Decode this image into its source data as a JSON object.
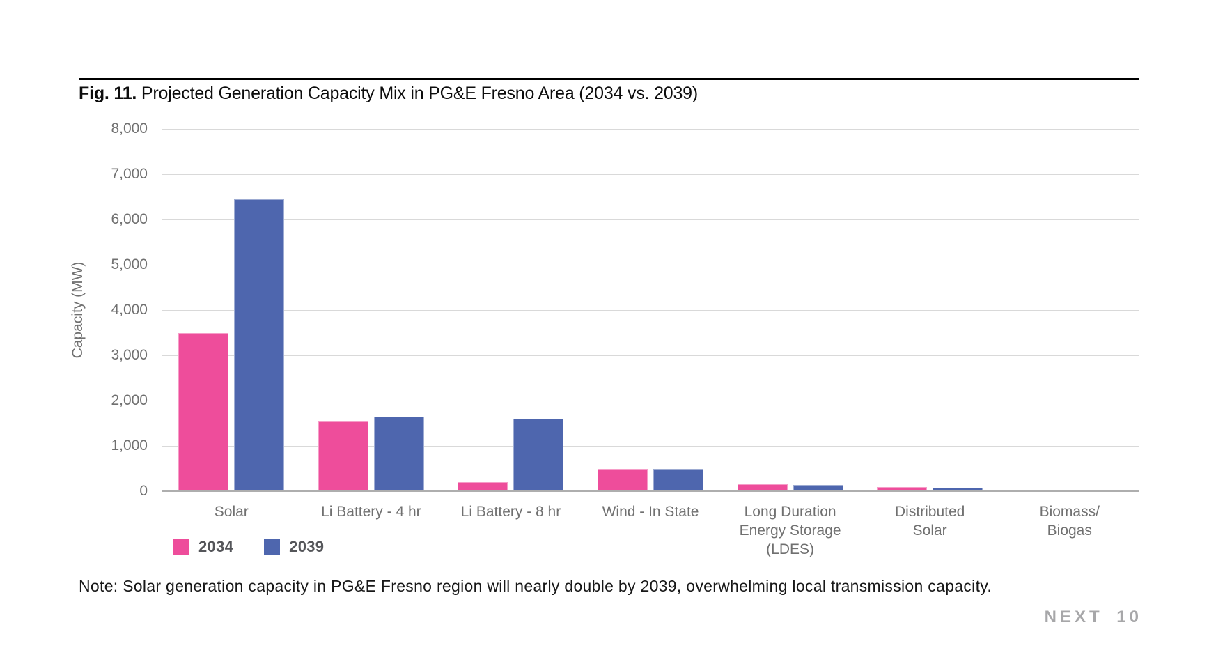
{
  "figure": {
    "label": "Fig. 11.",
    "title": "Projected Generation Capacity Mix in PG&E Fresno Area (2034 vs. 2039)"
  },
  "chart_data": {
    "type": "bar",
    "title": "Projected Generation Capacity Mix in PG&E Fresno Area (2034 vs. 2039)",
    "xlabel": "",
    "ylabel": "Capacity (MW)",
    "ylim": [
      0,
      8000
    ],
    "ytick_step": 1000,
    "grid": true,
    "legend_position": "bottom-left",
    "categories": [
      "Solar",
      "Li Battery - 4 hr",
      "Li Battery - 8 hr",
      "Wind - In State",
      "Long Duration\nEnergy Storage (LDES)",
      "Distributed\nSolar",
      "Biomass/\nBiogas"
    ],
    "series": [
      {
        "name": "2034",
        "color": "#EE4D9B",
        "values": [
          3500,
          1550,
          200,
          500,
          150,
          90,
          35
        ]
      },
      {
        "name": "2039",
        "color": "#4E66AE",
        "values": [
          6440,
          1650,
          1600,
          490,
          140,
          70,
          25
        ]
      }
    ]
  },
  "note": "Note: Solar generation capacity in PG&E Fresno region will nearly double by 2039, overwhelming local transmission capacity.",
  "branding": "NEXT 10",
  "colors": {
    "series_2034": "#EE4D9B",
    "series_2039": "#4E66AE",
    "gridline": "#D9D9D9",
    "axis_line": "#AEAEAE",
    "tick_text": "#707070",
    "title_text": "#0D0D0D",
    "note_text": "#181818",
    "branding_text": "#A7A7A9"
  }
}
